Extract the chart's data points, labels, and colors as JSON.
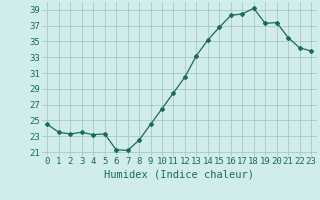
{
  "x": [
    0,
    1,
    2,
    3,
    4,
    5,
    6,
    7,
    8,
    9,
    10,
    11,
    12,
    13,
    14,
    15,
    16,
    17,
    18,
    19,
    20,
    21,
    22,
    23
  ],
  "y": [
    24.5,
    23.5,
    23.3,
    23.5,
    23.2,
    23.3,
    21.3,
    21.2,
    22.5,
    24.5,
    26.5,
    28.5,
    30.5,
    33.2,
    35.2,
    36.8,
    38.3,
    38.5,
    39.2,
    37.3,
    37.4,
    35.5,
    34.2,
    33.8
  ],
  "line_color": "#1a6b5a",
  "marker": "D",
  "marker_size": 2,
  "bg_color": "#d0ecec",
  "grid_color": "#a8c8c8",
  "xlabel": "Humidex (Indice chaleur)",
  "xlim": [
    -0.5,
    23.5
  ],
  "ylim": [
    20.5,
    40
  ],
  "yticks": [
    21,
    23,
    25,
    27,
    29,
    31,
    33,
    35,
    37,
    39
  ],
  "xtick_labels": [
    "0",
    "1",
    "2",
    "3",
    "4",
    "5",
    "6",
    "7",
    "8",
    "9",
    "10",
    "11",
    "12",
    "13",
    "14",
    "15",
    "16",
    "17",
    "18",
    "19",
    "20",
    "21",
    "22",
    "23"
  ],
  "tick_color": "#1a6b5a",
  "label_fontsize": 6.5,
  "xlabel_fontsize": 7.5
}
